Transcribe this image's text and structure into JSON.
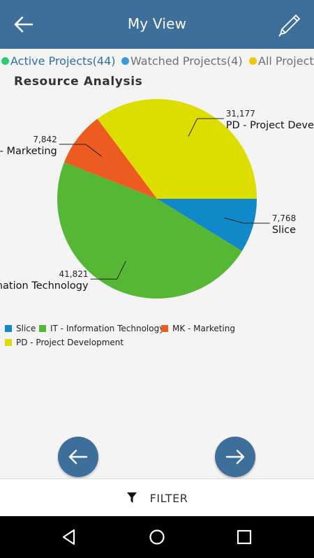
{
  "appbar": {
    "title": "My View",
    "back_icon": "arrow-left-icon",
    "edit_icon": "pencil-icon"
  },
  "tabs": [
    {
      "label": "Active Projects(44)",
      "color": "#2ecc71",
      "active": true
    },
    {
      "label": "Watched Projects(4)",
      "color": "#3a9ad9",
      "active": false
    },
    {
      "label": "All Projects",
      "color": "#f1c40f",
      "active": false
    }
  ],
  "chart_title": "Resource Analysis",
  "chart_data": {
    "type": "pie",
    "title": "Resource Analysis",
    "slices": [
      {
        "name": "Slice",
        "value": 7768,
        "value_label": "7,768",
        "color": "#1188c8"
      },
      {
        "name": "IT - Information Technology",
        "value": 41821,
        "value_label": "41,821",
        "slice_label": "IT - Information Technology",
        "color": "#55b733"
      },
      {
        "name": "MK - Marketing",
        "value": 7842,
        "value_label": "7,842",
        "slice_label": "MK - Marketing",
        "color": "#ec5b1f"
      },
      {
        "name": "PD - Project Development",
        "value": 31177,
        "value_label": "31,177",
        "slice_label": "PD - Project Development",
        "color": "#dedd00"
      }
    ],
    "legend_placement": "bottom-left"
  },
  "legend": [
    {
      "label": "Slice",
      "color": "#1188c8"
    },
    {
      "label": "IT - Information Technology",
      "color": "#55b733"
    },
    {
      "label": "MK - Marketing",
      "color": "#ec5b1f"
    },
    {
      "label": "PD - Project Development",
      "color": "#dedd00"
    }
  ],
  "nav": {
    "prev_icon": "arrow-left-circle-icon",
    "next_icon": "arrow-right-circle-icon"
  },
  "filter": {
    "label": "FILTER",
    "icon": "funnel-icon"
  },
  "system_nav": {
    "back_icon": "triangle-back-icon",
    "home_icon": "circle-home-icon",
    "recents_icon": "square-recents-icon"
  }
}
